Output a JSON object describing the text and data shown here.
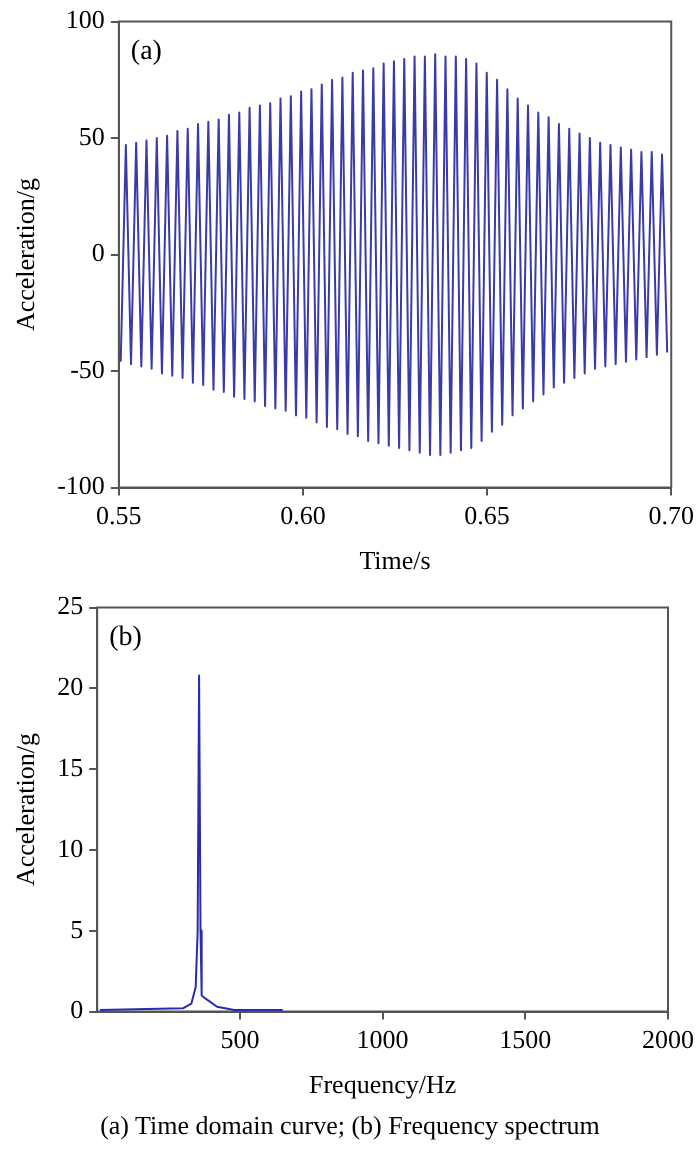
{
  "chart_data": [
    {
      "type": "line",
      "xlabel": "Time/s",
      "ylabel": "Acceleration/g",
      "annotations": [
        "(a)"
      ],
      "xlim": [
        0.55,
        0.7
      ],
      "xticks": [
        {
          "value": 0.55,
          "label": "0.55"
        },
        {
          "value": 0.6,
          "label": "0.60"
        },
        {
          "value": 0.65,
          "label": "0.65"
        },
        {
          "value": 0.7,
          "label": "0.70"
        }
      ],
      "ylim": [
        -100,
        100
      ],
      "yticks": [
        -100,
        -50,
        0,
        50,
        100
      ],
      "grid": false,
      "legend": false,
      "marker": "none",
      "line_style": "solid",
      "series": [
        {
          "color": "#3a3aa8",
          "x": [
            0.5505,
            0.5519,
            0.5533,
            0.5547,
            0.5561,
            0.5575,
            0.5589,
            0.5603,
            0.5617,
            0.5631,
            0.5645,
            0.5659,
            0.5673,
            0.5687,
            0.5701,
            0.5715,
            0.5729,
            0.5743,
            0.5757,
            0.5771,
            0.5785,
            0.5799,
            0.5813,
            0.5827,
            0.5841,
            0.5855,
            0.5869,
            0.5883,
            0.5897,
            0.5911,
            0.5925,
            0.5939,
            0.5953,
            0.5967,
            0.5981,
            0.5995,
            0.6009,
            0.6023,
            0.6037,
            0.6051,
            0.6065,
            0.6079,
            0.6093,
            0.6107,
            0.6121,
            0.6135,
            0.6149,
            0.6163,
            0.6177,
            0.6191,
            0.6205,
            0.6219,
            0.6233,
            0.6247,
            0.6261,
            0.6275,
            0.6289,
            0.6303,
            0.6317,
            0.6331,
            0.6345,
            0.6359,
            0.6373,
            0.6387,
            0.6401,
            0.6415,
            0.6429,
            0.6443,
            0.6457,
            0.6471,
            0.6485,
            0.6499,
            0.6513,
            0.6527,
            0.6541,
            0.6555,
            0.6569,
            0.6583,
            0.6597,
            0.6611,
            0.6625,
            0.6639,
            0.6653,
            0.6667,
            0.6681,
            0.6695,
            0.6709,
            0.6723,
            0.6737,
            0.6751,
            0.6765,
            0.6779,
            0.6793,
            0.6807,
            0.6821,
            0.6835,
            0.6849,
            0.6863,
            0.6877,
            0.6891,
            0.6905,
            0.6919,
            0.6933,
            0.6947,
            0.6961,
            0.6975,
            0.6989
          ],
          "values": [
            -46,
            47,
            -47,
            48,
            -48,
            49,
            -49,
            50,
            -51,
            51,
            -52,
            53,
            -53,
            54,
            -55,
            56,
            -56,
            57,
            -58,
            58,
            -59,
            60,
            -61,
            61,
            -62,
            63,
            -63,
            64,
            -65,
            65,
            -66,
            67,
            -67,
            68,
            -69,
            70,
            -70,
            71,
            -72,
            73,
            -74,
            75,
            -75,
            76,
            -77,
            78,
            -78,
            79,
            -80,
            80,
            -81,
            82,
            -82,
            83,
            -83,
            84,
            -84,
            85,
            -85,
            85,
            -86,
            86,
            -86,
            85,
            -85,
            85,
            -84,
            84,
            -83,
            82,
            -80,
            78,
            -76,
            75,
            -73,
            71,
            -69,
            67,
            -66,
            64,
            -63,
            61,
            -60,
            59,
            -57,
            56,
            -55,
            54,
            -53,
            52,
            -51,
            50,
            -49,
            48,
            -48,
            47,
            -47,
            46,
            -46,
            45,
            -45,
            44,
            -44,
            44,
            -43,
            43,
            -42
          ]
        }
      ]
    },
    {
      "type": "line",
      "xlabel": "Frequency/Hz",
      "ylabel": "Acceleration/g",
      "annotations": [
        "(b)",
        "(a) Time domain curve; (b) Frequency spectrum"
      ],
      "xlim": [
        0,
        2000
      ],
      "xticks": [
        500,
        1000,
        1500,
        2000
      ],
      "ylim": [
        0,
        25
      ],
      "yticks": [
        0,
        5,
        10,
        15,
        20,
        25
      ],
      "grid": false,
      "legend": false,
      "marker": "none",
      "line_style": "solid",
      "series": [
        {
          "color": "#2a2ab0",
          "x": [
            10,
            300,
            330,
            345,
            352,
            357,
            362,
            366,
            380,
            420,
            480,
            650
          ],
          "values": [
            0.1,
            0.2,
            0.5,
            1.5,
            5,
            20.8,
            5,
            1,
            0.8,
            0.3,
            0.1,
            0.1
          ]
        }
      ]
    }
  ]
}
